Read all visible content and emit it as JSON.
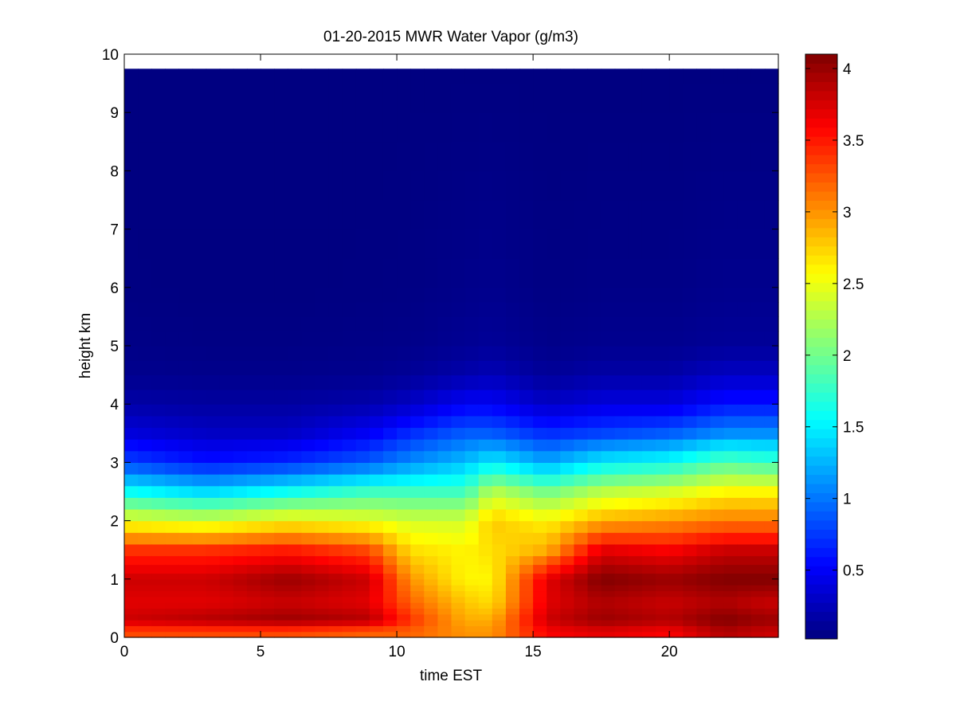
{
  "chart_data": {
    "type": "heatmap",
    "title": "01-20-2015 MWR Water Vapor (g/m3)",
    "xlabel": "time EST",
    "ylabel": "height km",
    "xlim": [
      0,
      24
    ],
    "ylim": [
      0,
      10
    ],
    "x_ticks": [
      0,
      5,
      10,
      15,
      20
    ],
    "y_ticks": [
      0,
      1,
      2,
      3,
      4,
      5,
      6,
      7,
      8,
      9,
      10
    ],
    "time_hours": [
      0,
      0.5,
      1,
      1.5,
      2,
      2.5,
      3,
      3.5,
      4,
      4.5,
      5,
      5.5,
      6,
      6.5,
      7,
      7.5,
      8,
      8.5,
      9,
      9.5,
      10,
      10.5,
      11,
      11.5,
      12,
      12.5,
      13,
      13.5,
      14,
      14.5,
      15,
      15.5,
      16,
      16.5,
      17,
      17.5,
      18,
      18.5,
      19,
      19.5,
      20,
      20.5,
      21,
      21.5,
      22,
      22.5,
      23,
      23.5
    ],
    "key_profiles": [
      {
        "t": 0.0,
        "values": [
          3.3,
          3.8,
          3.7,
          3.8,
          3.4,
          2.5,
          1.6,
          0.8,
          0.4,
          0.18,
          0.08,
          0.05
        ]
      },
      {
        "t": 3.0,
        "values": [
          3.3,
          3.9,
          3.7,
          3.8,
          3.4,
          2.4,
          1.4,
          0.6,
          0.3,
          0.15,
          0.07,
          0.04
        ]
      },
      {
        "t": 6.0,
        "values": [
          3.3,
          4.0,
          3.8,
          4.0,
          3.5,
          2.6,
          1.6,
          0.7,
          0.3,
          0.15,
          0.07,
          0.04
        ]
      },
      {
        "t": 9.0,
        "values": [
          3.2,
          3.9,
          3.7,
          3.8,
          3.3,
          2.5,
          1.8,
          0.9,
          0.5,
          0.2,
          0.08,
          0.05
        ]
      },
      {
        "t": 10.5,
        "values": [
          3.2,
          3.4,
          3.2,
          3.0,
          2.7,
          2.4,
          1.8,
          1.1,
          0.7,
          0.3,
          0.12,
          0.06
        ]
      },
      {
        "t": 12.5,
        "values": [
          3.0,
          2.9,
          2.8,
          2.6,
          2.6,
          2.4,
          1.8,
          1.3,
          0.9,
          0.5,
          0.2,
          0.1
        ]
      },
      {
        "t": 13.5,
        "values": [
          3.0,
          2.9,
          2.7,
          2.6,
          2.7,
          2.8,
          2.3,
          1.5,
          0.9,
          0.5,
          0.25,
          0.12
        ]
      },
      {
        "t": 15.5,
        "values": [
          3.6,
          3.8,
          3.7,
          3.7,
          2.9,
          2.6,
          2.0,
          1.2,
          0.7,
          0.3,
          0.12,
          0.06
        ]
      },
      {
        "t": 17.5,
        "values": [
          3.7,
          4.0,
          3.9,
          4.1,
          3.7,
          2.9,
          2.3,
          1.5,
          0.8,
          0.4,
          0.18,
          0.08
        ]
      },
      {
        "t": 20.0,
        "values": [
          3.6,
          3.9,
          3.8,
          4.0,
          3.6,
          3.0,
          2.4,
          1.6,
          0.9,
          0.4,
          0.18,
          0.08
        ]
      },
      {
        "t": 22.0,
        "values": [
          3.9,
          4.1,
          3.9,
          4.1,
          3.8,
          3.1,
          2.6,
          1.9,
          1.1,
          0.6,
          0.3,
          0.12
        ]
      },
      {
        "t": 23.5,
        "values": [
          3.8,
          4.0,
          3.8,
          4.1,
          3.8,
          3.1,
          2.6,
          1.8,
          1.1,
          0.6,
          0.3,
          0.12
        ]
      }
    ],
    "key_heights_km": [
      0.1,
      0.3,
      0.6,
      1.0,
      1.5,
      2.0,
      2.5,
      3.0,
      3.5,
      4.0,
      4.5,
      5.0
    ],
    "upper_values": {
      "above_5km_typical": 0.04,
      "top_level_km": 9.75
    },
    "colorbar": {
      "colormap": "jet",
      "range": [
        0.02,
        4.1
      ],
      "ticks": [
        0.5,
        1,
        1.5,
        2,
        2.5,
        3,
        3.5,
        4
      ],
      "tick_labels": [
        "0.5",
        "1",
        "1.5",
        "2",
        "2.5",
        "3",
        "3.5",
        "4"
      ]
    },
    "grid": false
  }
}
